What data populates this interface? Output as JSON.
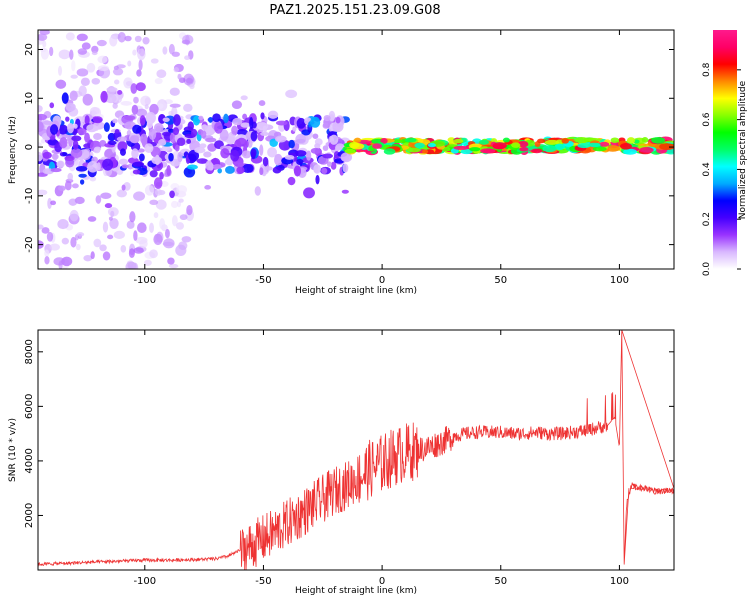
{
  "title": "PAZ1.2025.151.23.09.G08",
  "chart_data": [
    {
      "type": "heatmap",
      "xlabel": "Height of straight line (km)",
      "ylabel": "Frequency (Hz)",
      "xlim": [
        -145,
        123
      ],
      "ylim": [
        -25,
        24
      ],
      "xticks": [
        -100,
        -50,
        0,
        50,
        100
      ],
      "yticks": [
        20,
        10,
        0,
        -10,
        -20
      ],
      "colorbar": {
        "label": "Normalized spectral amplitude",
        "range": [
          0.0,
          0.96
        ],
        "ticks": [
          0.0,
          0.2,
          0.4,
          0.6,
          0.8
        ],
        "colormap": [
          "#ffffff",
          "#d9b8ff",
          "#9933ff",
          "#4400ff",
          "#0000ff",
          "#00aaff",
          "#00ffff",
          "#00ff66",
          "#00ff00",
          "#88ff00",
          "#ffff00",
          "#ff8800",
          "#ff0000",
          "#ff0066",
          "#ff1a8c"
        ]
      },
      "description_regions": [
        {
          "x_range": [
            -145,
            -80
          ],
          "freq_band": [
            -25,
            24
          ],
          "amplitude": 0.05,
          "pattern": "scattered"
        },
        {
          "x_range": [
            -145,
            -15
          ],
          "freq_band": [
            -5,
            6
          ],
          "amplitude": 0.2,
          "pattern": "noisy band"
        },
        {
          "x_range": [
            -15,
            123
          ],
          "freq_band": [
            -1,
            1.5
          ],
          "amplitude": 0.75,
          "pattern": "narrow strong line near 0 Hz"
        }
      ]
    },
    {
      "type": "line",
      "xlabel": "Height of straight line (km)",
      "ylabel": "SNR (10 * v/v)",
      "xlim": [
        -145,
        123
      ],
      "ylim": [
        0,
        8800
      ],
      "xticks": [
        -100,
        -50,
        0,
        50,
        100
      ],
      "yticks": [
        2000,
        4000,
        6000,
        8000
      ],
      "color": "#ee3333",
      "x": [
        -145,
        -130,
        -115,
        -100,
        -90,
        -80,
        -70,
        -65,
        -60,
        -55,
        -50,
        -45,
        -40,
        -35,
        -30,
        -25,
        -20,
        -15,
        -10,
        -5,
        0,
        5,
        10,
        15,
        20,
        25,
        30,
        35,
        40,
        45,
        50,
        55,
        60,
        65,
        70,
        75,
        80,
        85,
        90,
        95,
        98,
        100,
        101,
        102,
        103,
        105,
        110,
        115,
        120,
        123
      ],
      "y": [
        150,
        200,
        250,
        300,
        300,
        320,
        350,
        450,
        650,
        900,
        1150,
        1400,
        1700,
        2000,
        2300,
        2600,
        2900,
        3100,
        3400,
        3700,
        3900,
        4150,
        4300,
        4400,
        4500,
        4700,
        4900,
        5000,
        5050,
        5050,
        5050,
        5000,
        5000,
        5050,
        5000,
        5000,
        5050,
        5100,
        5200,
        5300,
        5600,
        4500,
        8800,
        200,
        2400,
        3100,
        3000,
        2900,
        2900,
        2900
      ],
      "peaks": [
        {
          "x": 101,
          "y": 8800
        },
        {
          "x": 102,
          "y": 200
        }
      ]
    }
  ]
}
